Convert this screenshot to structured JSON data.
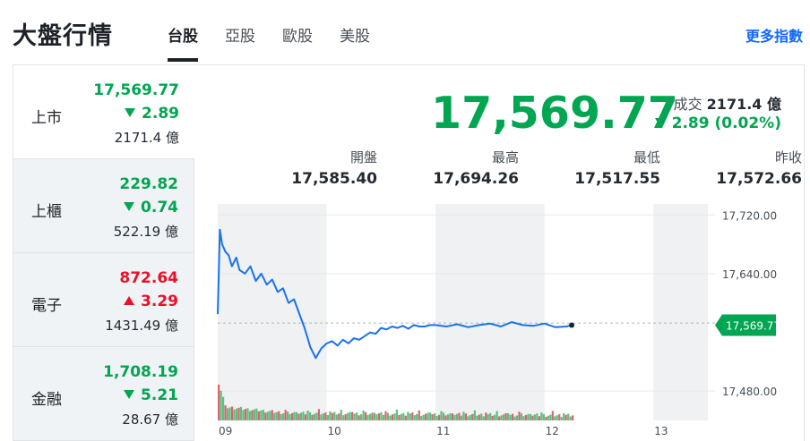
{
  "header": {
    "title": "大盤行情",
    "tabs": [
      {
        "label": "台股",
        "active": true
      },
      {
        "label": "亞股",
        "active": false
      },
      {
        "label": "歐股",
        "active": false
      },
      {
        "label": "美股",
        "active": false
      }
    ],
    "more_link": "更多指數"
  },
  "colors": {
    "down": "#00a651",
    "up": "#eb0f29",
    "line": "#1a73e8",
    "link": "#0f69ff"
  },
  "sidebar": {
    "items": [
      {
        "name": "上市",
        "price": "17,569.77",
        "change": "2.89",
        "direction": "down",
        "volume": "2171.4 億",
        "active": true
      },
      {
        "name": "上櫃",
        "price": "229.82",
        "change": "0.74",
        "direction": "down",
        "volume": "522.19 億",
        "active": false
      },
      {
        "name": "電子",
        "price": "872.64",
        "change": "3.29",
        "direction": "up",
        "volume": "1431.49 億",
        "active": false
      },
      {
        "name": "金融",
        "price": "1,708.19",
        "change": "5.21",
        "direction": "down",
        "volume": "28.67 億",
        "active": false
      }
    ]
  },
  "main": {
    "price": "17,569.77",
    "volume_label": "成交",
    "volume_value": "2171.4 億",
    "change": "2.89 (0.02%)",
    "direction": "down",
    "stats": [
      {
        "label": "開盤",
        "value": "17,585.40"
      },
      {
        "label": "最高",
        "value": "17,694.26"
      },
      {
        "label": "最低",
        "value": "17,517.55"
      },
      {
        "label": "昨收",
        "value": "17,572.66"
      }
    ]
  },
  "chart_data": {
    "type": "line",
    "x_ticks": [
      "09",
      "10",
      "11",
      "12",
      "13"
    ],
    "y_ticks": [
      "17,720.00",
      "17,640.00",
      "17,480.00"
    ],
    "y_tick_values": [
      17720,
      17640,
      17480
    ],
    "ylim": [
      17440,
      17735
    ],
    "xlim": [
      9.0,
      13.5
    ],
    "current_label": "17,569.77",
    "current_value": 17569.77,
    "reference_value": 17572.66,
    "series": [
      {
        "x": [
          9.0,
          9.02,
          9.04,
          9.07,
          9.1,
          9.13,
          9.17,
          9.2,
          9.25,
          9.3,
          9.35,
          9.4,
          9.45,
          9.5,
          9.55,
          9.6,
          9.65,
          9.7,
          9.75,
          9.8,
          9.85,
          9.9,
          9.95,
          10.0,
          10.05,
          10.1,
          10.15,
          10.2,
          10.25,
          10.3,
          10.35,
          10.4,
          10.45,
          10.5,
          10.55,
          10.6,
          10.65,
          10.7,
          10.75,
          10.8,
          10.85,
          10.9,
          10.95,
          11.0,
          11.1,
          11.2,
          11.3,
          11.4,
          11.5,
          11.6,
          11.7,
          11.8,
          11.9,
          12.0,
          12.1,
          12.2,
          12.25
        ],
        "y": [
          17585,
          17700,
          17680,
          17670,
          17665,
          17650,
          17662,
          17645,
          17640,
          17650,
          17630,
          17640,
          17625,
          17632,
          17615,
          17620,
          17600,
          17605,
          17585,
          17565,
          17540,
          17525,
          17538,
          17545,
          17548,
          17542,
          17550,
          17545,
          17552,
          17550,
          17555,
          17560,
          17558,
          17566,
          17564,
          17568,
          17566,
          17569,
          17565,
          17570,
          17568,
          17568,
          17570,
          17570,
          17568,
          17571,
          17567,
          17570,
          17572,
          17568,
          17574,
          17570,
          17569,
          17572,
          17567,
          17568,
          17569.77
        ]
      }
    ],
    "volume_bars_present": true
  }
}
